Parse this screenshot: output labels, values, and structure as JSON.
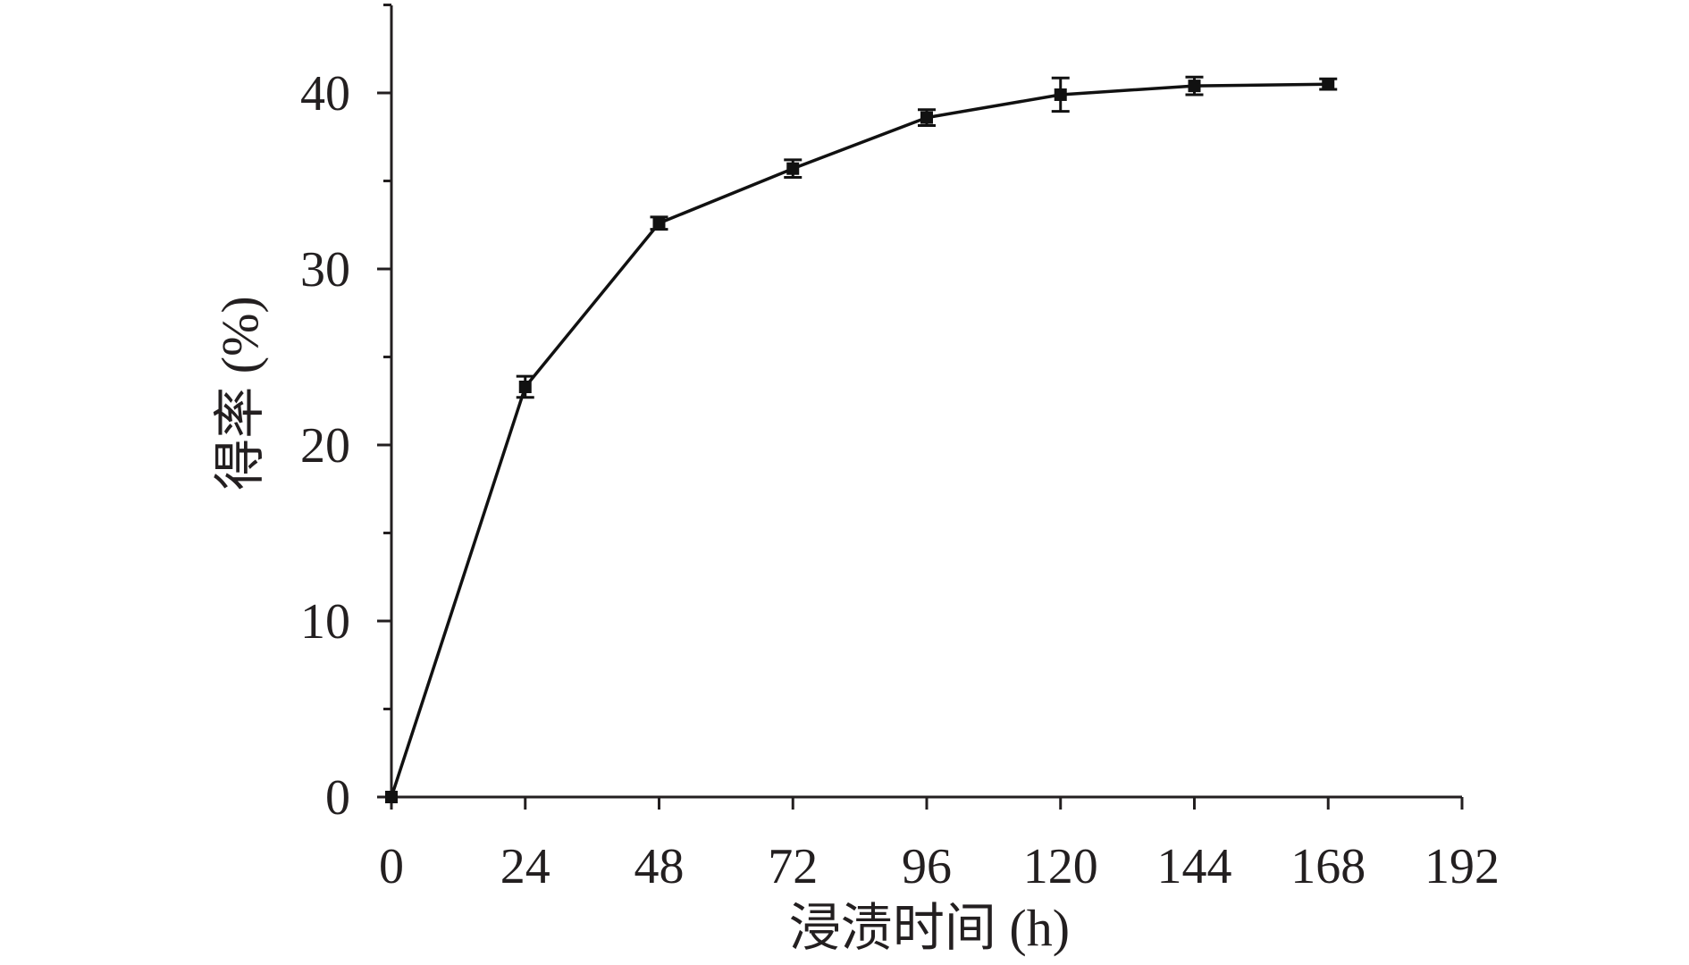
{
  "chart_data": {
    "type": "line",
    "title": "",
    "xlabel": "浸渍时间 (h)",
    "ylabel": "得率 (%)",
    "xlim": [
      0,
      192
    ],
    "ylim": [
      0,
      45
    ],
    "x_ticks": [
      0,
      24,
      48,
      72,
      96,
      120,
      144,
      168,
      192
    ],
    "x_tick_labels": [
      "0",
      "24",
      "48",
      "72",
      "96",
      "120",
      "144",
      "168",
      "192"
    ],
    "y_ticks": [
      0,
      10,
      20,
      30,
      40
    ],
    "y_tick_labels": [
      "0",
      "10",
      "20",
      "30",
      "40"
    ],
    "y_minor_ticks": [
      5,
      15,
      25,
      35,
      45
    ],
    "grid": false,
    "legend": "none",
    "series": [
      {
        "x": [
          0,
          24,
          48,
          72,
          96,
          120,
          144,
          168
        ],
        "values": [
          0,
          23.3,
          32.6,
          35.7,
          38.6,
          39.9,
          40.4,
          40.5
        ],
        "error": [
          0,
          0.6,
          0.35,
          0.5,
          0.45,
          0.95,
          0.5,
          0.3
        ],
        "color": "#111111",
        "marker": "square"
      }
    ],
    "colors": {
      "axis": "#231f20",
      "line": "#111111"
    }
  }
}
